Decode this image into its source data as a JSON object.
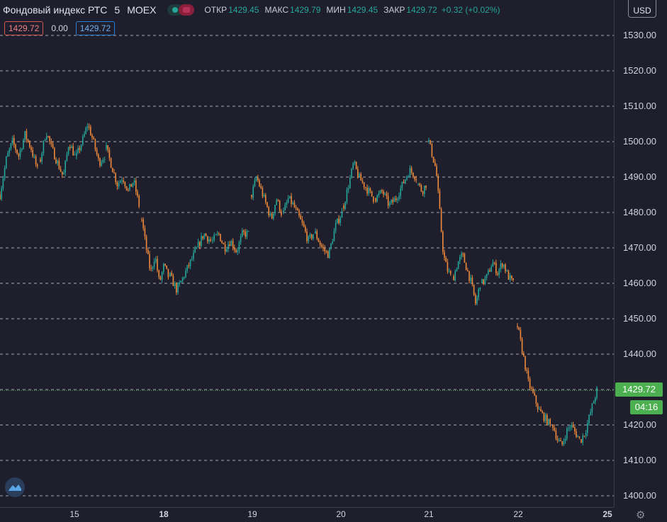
{
  "header": {
    "title": "Фондовый индекс РТС",
    "interval": "5",
    "exchange": "MOEX",
    "open_label": "ОТКР",
    "open": "1429.45",
    "high_label": "МАКС",
    "high": "1429.79",
    "low_label": "МИН",
    "low": "1429.45",
    "close_label": "ЗАКР",
    "close": "1429.72",
    "change": "+0.32 (+0.02%)"
  },
  "badges": {
    "bid": "1429.72",
    "spread": "0.00",
    "ask": "1429.72"
  },
  "axis": {
    "currency": "USD",
    "current_price": "1429.72",
    "countdown": "04:16"
  },
  "colors": {
    "up": "#26a69a",
    "down": "#ef8a3a",
    "background": "#1e1e2d",
    "price_tag": "#4caf50"
  },
  "icons": {
    "logo": "tradingview-logo-icon",
    "settings": "gear-icon"
  },
  "chart_data": {
    "type": "candlestick",
    "title": "",
    "ylim": [
      1400,
      1530
    ],
    "yticks": [
      1400,
      1410,
      1420,
      1430,
      1440,
      1450,
      1460,
      1470,
      1480,
      1490,
      1500,
      1510,
      1520,
      1530
    ],
    "ytick_labels": [
      "1400.00",
      "1410.00",
      "1420.00",
      "1430.00",
      "1440.00",
      "1450.00",
      "1460.00",
      "1470.00",
      "1480.00",
      "1490.00",
      "1500.00",
      "1510.00",
      "1520.00",
      "1530.00"
    ],
    "xticks": [
      {
        "label": "15",
        "bold": false
      },
      {
        "label": "18",
        "bold": true
      },
      {
        "label": "19",
        "bold": false
      },
      {
        "label": "20",
        "bold": false
      },
      {
        "label": "21",
        "bold": false
      },
      {
        "label": "22",
        "bold": false
      },
      {
        "label": "25",
        "bold": true
      }
    ],
    "grid": "horizontal-dashed",
    "sessions": [
      {
        "day": "14",
        "path": [
          1485,
          1495,
          1500,
          1496,
          1502,
          1498,
          1492
        ]
      },
      {
        "day": "15",
        "path": [
          1495,
          1503,
          1498,
          1494,
          1490,
          1500,
          1496
        ]
      },
      {
        "day": "15",
        "path": [
          1496,
          1500,
          1505,
          1500,
          1494,
          1496
        ]
      },
      {
        "day": "15-16",
        "path": [
          1498,
          1493,
          1488,
          1490,
          1486,
          1489,
          1482
        ]
      },
      {
        "day": "16",
        "path": [
          1478,
          1470,
          1463,
          1468,
          1460,
          1465,
          1462
        ]
      },
      {
        "day": "18",
        "path": [
          1462,
          1458,
          1462,
          1466,
          1470,
          1474,
          1472
        ]
      },
      {
        "day": "18",
        "path": [
          1472,
          1474,
          1470,
          1472,
          1469,
          1474,
          1474
        ]
      },
      {
        "day": "19",
        "path": [
          1485,
          1490,
          1486,
          1482,
          1478,
          1484,
          1480
        ]
      },
      {
        "day": "19",
        "path": [
          1480,
          1484,
          1482,
          1479,
          1476,
          1472,
          1474
        ]
      },
      {
        "day": "19",
        "path": [
          1474,
          1470,
          1468,
          1476,
          1480
        ]
      },
      {
        "day": "20",
        "path": [
          1482,
          1488,
          1494,
          1490,
          1488,
          1486,
          1484
        ]
      },
      {
        "day": "20",
        "path": [
          1484,
          1486,
          1482,
          1484,
          1488,
          1492,
          1490
        ]
      },
      {
        "day": "20",
        "path": [
          1488,
          1486,
          1488
        ]
      },
      {
        "day": "21",
        "path": [
          1500,
          1496,
          1492,
          1480,
          1468,
          1464,
          1462
        ]
      },
      {
        "day": "21",
        "path": [
          1462,
          1466,
          1468,
          1464,
          1460,
          1454,
          1460
        ]
      },
      {
        "day": "21",
        "path": [
          1460,
          1462,
          1466,
          1463,
          1466,
          1462,
          1460
        ]
      },
      {
        "day": "22",
        "path": [
          1448,
          1440,
          1432,
          1428,
          1424,
          1422,
          1420
        ]
      },
      {
        "day": "22",
        "path": [
          1420,
          1416,
          1414,
          1418,
          1420,
          1418,
          1416
        ]
      },
      {
        "day": "22",
        "path": [
          1416,
          1418,
          1422,
          1426,
          1429.72
        ]
      }
    ]
  }
}
